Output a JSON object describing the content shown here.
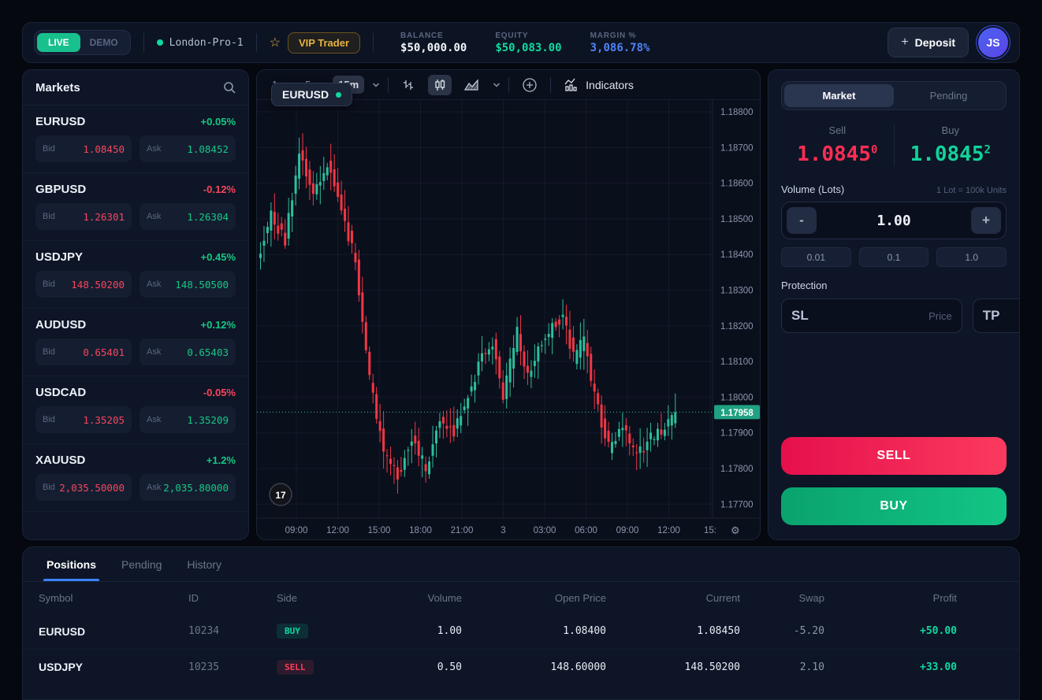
{
  "topbar": {
    "live_label": "LIVE",
    "demo_label": "DEMO",
    "server": "London-Pro-1",
    "vip_badge": "VIP Trader",
    "stats": [
      {
        "label": "BALANCE",
        "value": "$50,000.00",
        "color": "#f2f5fa"
      },
      {
        "label": "EQUITY",
        "value": "$50,083.00",
        "color": "#10d9a0"
      },
      {
        "label": "MARGIN %",
        "value": "3,086.78%",
        "color": "#4f83f7"
      }
    ],
    "deposit_label": "Deposit",
    "avatar_initials": "JS"
  },
  "markets": {
    "title": "Markets",
    "bid_label": "Bid",
    "ask_label": "Ask",
    "items": [
      {
        "symbol": "EURUSD",
        "change": "+0.05%",
        "dir": "up",
        "bid": "1.08450",
        "ask": "1.08452"
      },
      {
        "symbol": "GBPUSD",
        "change": "-0.12%",
        "dir": "down",
        "bid": "1.26301",
        "ask": "1.26304"
      },
      {
        "symbol": "USDJPY",
        "change": "+0.45%",
        "dir": "up",
        "bid": "148.50200",
        "ask": "148.50500"
      },
      {
        "symbol": "AUDUSD",
        "change": "+0.12%",
        "dir": "up",
        "bid": "0.65401",
        "ask": "0.65403"
      },
      {
        "symbol": "USDCAD",
        "change": "-0.05%",
        "dir": "down",
        "bid": "1.35205",
        "ask": "1.35209"
      },
      {
        "symbol": "XAUUSD",
        "change": "+1.2%",
        "dir": "up",
        "bid": "2,035.50000",
        "ask": "2,035.80000"
      }
    ]
  },
  "chart": {
    "symbol_badge": "EURUSD",
    "timeframes": [
      "1m",
      "5m",
      "15m"
    ],
    "active_timeframe": "15m",
    "indicators_label": "Indicators",
    "price_axis": [
      "1.18800",
      "1.18700",
      "1.18600",
      "1.18500",
      "1.18400",
      "1.18300",
      "1.18200",
      "1.18100",
      "1.18000",
      "1.17900",
      "1.17800",
      "1.17700"
    ],
    "time_axis": [
      "09:00",
      "12:00",
      "15:00",
      "18:00",
      "21:00",
      "3",
      "03:00",
      "06:00",
      "09:00",
      "12:00",
      "15:"
    ],
    "current_price": "1.17958",
    "colors": {
      "up": "#2cbf9c",
      "down": "#f23645",
      "line": "#2cbf9c",
      "tag_bg": "#1fa182"
    },
    "chart_data": {
      "type": "candlestick",
      "symbol": "EURUSD",
      "timeframe": "15m",
      "ylim": [
        1.177,
        1.188
      ],
      "last_close": 1.17958,
      "waypoints": [
        [
          0,
          1.1838
        ],
        [
          4,
          1.1851
        ],
        [
          8,
          1.1844
        ],
        [
          12,
          1.1868
        ],
        [
          16,
          1.1857
        ],
        [
          20,
          1.1866
        ],
        [
          24,
          1.1852
        ],
        [
          28,
          1.1838
        ],
        [
          32,
          1.1805
        ],
        [
          36,
          1.1785
        ],
        [
          40,
          1.1778
        ],
        [
          44,
          1.1789
        ],
        [
          48,
          1.178
        ],
        [
          52,
          1.1793
        ],
        [
          56,
          1.179
        ],
        [
          60,
          1.18
        ],
        [
          64,
          1.1812
        ],
        [
          67,
          1.1815
        ],
        [
          70,
          1.1801
        ],
        [
          74,
          1.1818
        ],
        [
          77,
          1.1806
        ],
        [
          80,
          1.1813
        ],
        [
          84,
          1.182
        ],
        [
          87,
          1.1823
        ],
        [
          90,
          1.1811
        ],
        [
          93,
          1.1816
        ],
        [
          96,
          1.18
        ],
        [
          100,
          1.1786
        ],
        [
          104,
          1.1791
        ],
        [
          108,
          1.1783
        ],
        [
          112,
          1.1789
        ],
        [
          116,
          1.1791
        ],
        [
          119,
          1.17958
        ]
      ]
    }
  },
  "order": {
    "tabs": [
      "Market",
      "Pending"
    ],
    "sell_label": "Sell",
    "buy_label": "Buy",
    "sell_price_base": "1.0845",
    "sell_price_sup": "0",
    "buy_price_base": "1.0845",
    "buy_price_sup": "2",
    "volume_label": "Volume (Lots)",
    "volume_hint": "1 Lot = 100k Units",
    "volume_value": "1.00",
    "minus_label": "-",
    "plus_label": "+",
    "quick_volumes": [
      "0.01",
      "0.1",
      "1.0"
    ],
    "protection_label": "Protection",
    "sl_label": "SL",
    "tp_label": "TP",
    "price_placeholder": "Price",
    "sell_button": "SELL",
    "buy_button": "BUY"
  },
  "positions": {
    "tabs": [
      "Positions",
      "Pending",
      "History"
    ],
    "active_tab": "Positions",
    "columns": [
      "Symbol",
      "ID",
      "Side",
      "Volume",
      "Open Price",
      "Current",
      "Swap",
      "Profit"
    ],
    "rows": [
      {
        "symbol": "EURUSD",
        "id": "10234",
        "side": "BUY",
        "volume": "1.00",
        "open": "1.08400",
        "current": "1.08450",
        "swap": "-5.20",
        "profit": "+50.00"
      },
      {
        "symbol": "USDJPY",
        "id": "10235",
        "side": "SELL",
        "volume": "0.50",
        "open": "148.60000",
        "current": "148.50200",
        "swap": "2.10",
        "profit": "+33.00"
      }
    ]
  }
}
